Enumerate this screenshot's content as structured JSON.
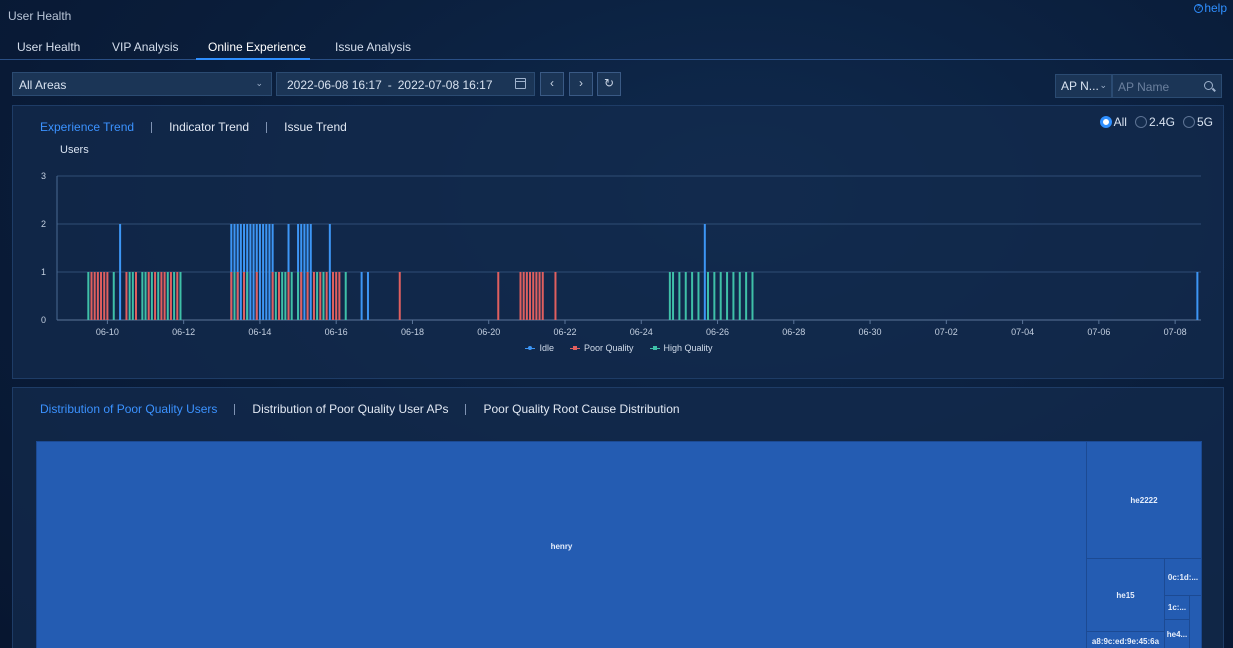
{
  "header": {
    "title": "User Health",
    "help": "help"
  },
  "tabs": [
    {
      "label": "User Health"
    },
    {
      "label": "VIP Analysis"
    },
    {
      "label": "Online Experience",
      "active": true
    },
    {
      "label": "Issue Analysis"
    }
  ],
  "filters": {
    "area": "All Areas",
    "date_start": "2022-06-08 16:17",
    "date_sep": "-",
    "date_end": "2022-07-08 16:17",
    "ap_type": "AP N...",
    "ap_placeholder": "AP Name"
  },
  "trend_panel": {
    "tabs": [
      "Experience Trend",
      "Indicator Trend",
      "Issue Trend"
    ],
    "band_options": [
      "All",
      "2.4G",
      "5G"
    ],
    "selected_band": "All"
  },
  "chart_data": {
    "type": "bar",
    "ylabel": "Users",
    "ylim": [
      0,
      3
    ],
    "y_ticks": [
      "0",
      "1",
      "2",
      "3"
    ],
    "x_range": [
      "06-08 16:17",
      "07-08 16:17"
    ],
    "x_tick_labels": [
      "06-10",
      "06-12",
      "06-14",
      "06-16",
      "06-18",
      "06-20",
      "06-22",
      "06-24",
      "06-26",
      "06-28",
      "06-30",
      "07-02",
      "07-04",
      "07-06",
      "07-08"
    ],
    "legend_position": "bottom-center",
    "series": [
      {
        "name": "Idle",
        "color": "#3d96f5",
        "points": [
          [
            "06-10 08:00",
            2
          ],
          [
            "06-13 06:00",
            2
          ],
          [
            "06-13 08:00",
            2
          ],
          [
            "06-13 10:00",
            2
          ],
          [
            "06-13 12:00",
            2
          ],
          [
            "06-13 14:00",
            2
          ],
          [
            "06-13 16:00",
            2
          ],
          [
            "06-13 18:00",
            2
          ],
          [
            "06-13 20:00",
            2
          ],
          [
            "06-13 22:00",
            2
          ],
          [
            "06-14 00:00",
            2
          ],
          [
            "06-14 02:00",
            2
          ],
          [
            "06-14 04:00",
            2
          ],
          [
            "06-14 06:00",
            2
          ],
          [
            "06-14 08:00",
            2
          ],
          [
            "06-14 18:00",
            2
          ],
          [
            "06-15 00:00",
            2
          ],
          [
            "06-15 02:00",
            2
          ],
          [
            "06-15 04:00",
            2
          ],
          [
            "06-15 06:00",
            2
          ],
          [
            "06-15 08:00",
            2
          ],
          [
            "06-15 20:00",
            2
          ],
          [
            "06-16 16:00",
            1
          ],
          [
            "06-16 20:00",
            1
          ],
          [
            "06-25 16:00",
            2
          ],
          [
            "07-08 14:00",
            1
          ]
        ]
      },
      {
        "name": "Poor Quality",
        "color": "#e05f5f",
        "points": [
          [
            "06-09 14:00",
            1
          ],
          [
            "06-09 16:00",
            1
          ],
          [
            "06-09 18:00",
            1
          ],
          [
            "06-09 20:00",
            1
          ],
          [
            "06-09 22:00",
            1
          ],
          [
            "06-10 00:00",
            1
          ],
          [
            "06-10 12:00",
            1
          ],
          [
            "06-10 18:00",
            1
          ],
          [
            "06-11 02:00",
            1
          ],
          [
            "06-11 06:00",
            1
          ],
          [
            "06-11 10:00",
            1
          ],
          [
            "06-11 12:00",
            1
          ],
          [
            "06-11 16:00",
            1
          ],
          [
            "06-11 20:00",
            1
          ],
          [
            "06-13 06:00",
            1
          ],
          [
            "06-13 10:00",
            1
          ],
          [
            "06-13 14:00",
            1
          ],
          [
            "06-13 22:00",
            1
          ],
          [
            "06-14 08:00",
            1
          ],
          [
            "06-14 12:00",
            1
          ],
          [
            "06-14 18:00",
            1
          ],
          [
            "06-15 02:00",
            1
          ],
          [
            "06-15 06:00",
            1
          ],
          [
            "06-15 10:00",
            1
          ],
          [
            "06-15 14:00",
            1
          ],
          [
            "06-15 18:00",
            1
          ],
          [
            "06-15 22:00",
            1
          ],
          [
            "06-16 00:00",
            1
          ],
          [
            "06-16 02:00",
            1
          ],
          [
            "06-17 16:00",
            1
          ],
          [
            "06-20 06:00",
            1
          ],
          [
            "06-20 20:00",
            1
          ],
          [
            "06-20 22:00",
            1
          ],
          [
            "06-21 00:00",
            1
          ],
          [
            "06-21 02:00",
            1
          ],
          [
            "06-21 04:00",
            1
          ],
          [
            "06-21 06:00",
            1
          ],
          [
            "06-21 08:00",
            1
          ],
          [
            "06-21 10:00",
            1
          ],
          [
            "06-21 18:00",
            1
          ]
        ]
      },
      {
        "name": "High Quality",
        "color": "#3fc0a8",
        "points": [
          [
            "06-09 12:00",
            1
          ],
          [
            "06-10 04:00",
            1
          ],
          [
            "06-10 14:00",
            1
          ],
          [
            "06-10 16:00",
            1
          ],
          [
            "06-10 22:00",
            1
          ],
          [
            "06-11 00:00",
            1
          ],
          [
            "06-11 04:00",
            1
          ],
          [
            "06-11 08:00",
            1
          ],
          [
            "06-11 14:00",
            1
          ],
          [
            "06-11 18:00",
            1
          ],
          [
            "06-11 22:00",
            1
          ],
          [
            "06-13 08:00",
            1
          ],
          [
            "06-13 16:00",
            1
          ],
          [
            "06-14 10:00",
            1
          ],
          [
            "06-14 14:00",
            1
          ],
          [
            "06-14 16:00",
            1
          ],
          [
            "06-14 20:00",
            1
          ],
          [
            "06-15 00:00",
            1
          ],
          [
            "06-15 12:00",
            1
          ],
          [
            "06-15 16:00",
            1
          ],
          [
            "06-16 06:00",
            1
          ],
          [
            "06-24 18:00",
            1
          ],
          [
            "06-24 20:00",
            1
          ],
          [
            "06-25 00:00",
            1
          ],
          [
            "06-25 04:00",
            1
          ],
          [
            "06-25 08:00",
            1
          ],
          [
            "06-25 12:00",
            1
          ],
          [
            "06-25 18:00",
            1
          ],
          [
            "06-25 22:00",
            1
          ],
          [
            "06-26 02:00",
            1
          ],
          [
            "06-26 06:00",
            1
          ],
          [
            "06-26 10:00",
            1
          ],
          [
            "06-26 14:00",
            1
          ],
          [
            "06-26 18:00",
            1
          ],
          [
            "06-26 22:00",
            1
          ]
        ]
      }
    ]
  },
  "distribution_panel": {
    "tabs": [
      "Distribution of Poor Quality Users",
      "Distribution of Poor Quality User APs",
      "Poor Quality Root Cause Distribution"
    ],
    "treemap": [
      {
        "label": "henry"
      },
      {
        "label": "he2222"
      },
      {
        "label": "he15"
      },
      {
        "label": "0c:1d:..."
      },
      {
        "label": "1c:..."
      },
      {
        "label": "he4..."
      },
      {
        "label": "a8:9c:ed:9e:45:6a"
      },
      {
        "label": ""
      }
    ]
  }
}
